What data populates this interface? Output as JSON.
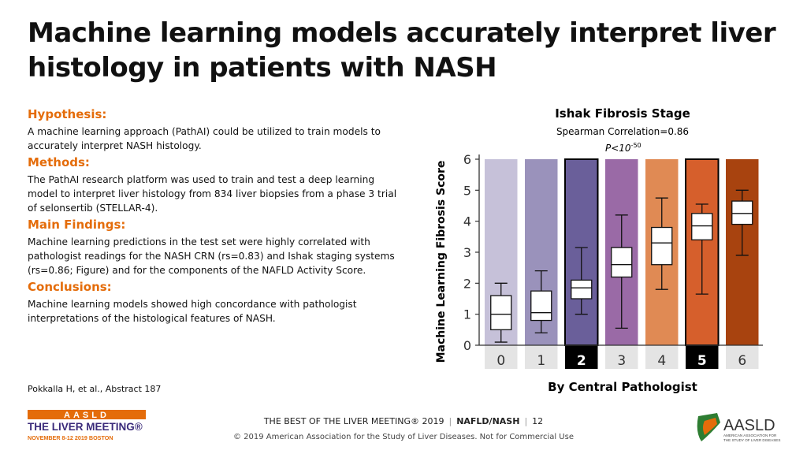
{
  "slide": {
    "title": "Machine learning models accurately interpret liver histology in patients with NASH",
    "sections": [
      {
        "heading": "Hypothesis:",
        "text": "A machine learning approach (PathAI) could be utilized to train models to accurately interpret NASH histology."
      },
      {
        "heading": "Methods:",
        "text": "The PathAI research platform was used to train and test a deep learning model to interpret liver histology from 834 liver biopsies from a phase 3 trial of selonsertib (STELLAR-4)."
      },
      {
        "heading": "Main Findings:",
        "text": "Machine learning predictions in the test set were highly correlated with pathologist readings for the NASH CRN (rs=0.83) and Ishak staging systems (rs=0.86; Figure) and for the components of the NAFLD Activity Score."
      },
      {
        "heading": "Conclusions:",
        "text": "Machine learning models showed high concordance with pathologist interpretations of the histological features of NASH."
      }
    ],
    "reference": "Pokkalla H, et al., Abstract 187"
  },
  "footer": {
    "meeting": "THE BEST OF THE LIVER MEETING® 2019",
    "topic": "NAFLD/NASH",
    "page": "12",
    "copyright": "© 2019 American Association for the Study of Liver Diseases. Not for Commercial Use",
    "left_logo": {
      "line1": "AASLD",
      "line2": "THE LIVER MEETING®",
      "line3": "NOVEMBER 8-12 2019 BOSTON"
    },
    "right_logo": {
      "name": "AASLD",
      "tagline": [
        "AMERICAN ASSOCIATION FOR",
        "THE STUDY OF LIVER DISEASES"
      ]
    }
  },
  "chart_data": {
    "type": "boxplot",
    "title": "Ishak Fibrosis Stage",
    "subtitle": "Spearman Correlation=0.86",
    "p_value_prefix": "P<10",
    "p_value_exp": "-50",
    "xlabel": "By Central Pathologist",
    "ylabel": "Machine Learning Fibrosis Score",
    "ylim": [
      0,
      6
    ],
    "yticks": [
      0,
      1,
      2,
      3,
      4,
      5,
      6
    ],
    "categories": [
      "0",
      "1",
      "2",
      "3",
      "4",
      "5",
      "6"
    ],
    "highlighted": [
      "2",
      "5"
    ],
    "colors": [
      "#c6c1d9",
      "#9a92bb",
      "#6a5f9a",
      "#9a6aa6",
      "#e08a54",
      "#d65f2c",
      "#a8430f"
    ],
    "boxes": [
      {
        "min": 0.1,
        "q1": 0.5,
        "median": 1.0,
        "q3": 1.6,
        "max": 2.0
      },
      {
        "min": 0.4,
        "q1": 0.8,
        "median": 1.05,
        "q3": 1.75,
        "max": 2.4
      },
      {
        "min": 1.0,
        "q1": 1.5,
        "median": 1.85,
        "q3": 2.1,
        "max": 3.15
      },
      {
        "min": 0.55,
        "q1": 2.2,
        "median": 2.6,
        "q3": 3.15,
        "max": 4.2
      },
      {
        "min": 1.8,
        "q1": 2.6,
        "median": 3.3,
        "q3": 3.8,
        "max": 4.75
      },
      {
        "min": 1.65,
        "q1": 3.4,
        "median": 3.85,
        "q3": 4.25,
        "max": 4.55
      },
      {
        "min": 2.9,
        "q1": 3.9,
        "median": 4.25,
        "q3": 4.65,
        "max": 5.0
      }
    ]
  }
}
